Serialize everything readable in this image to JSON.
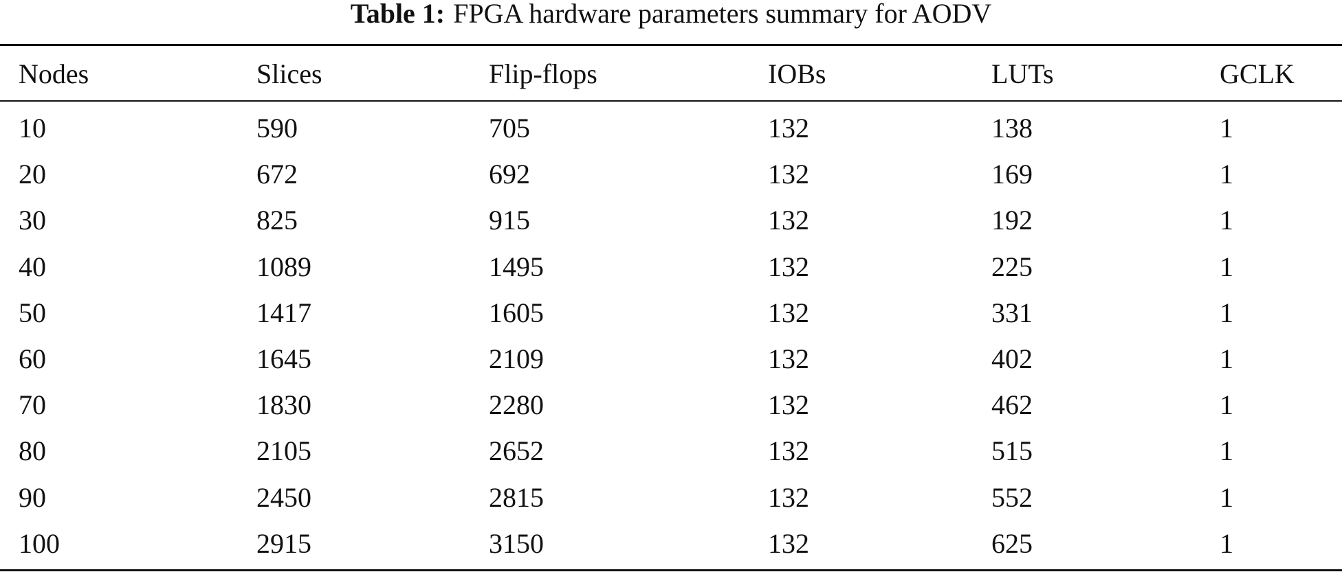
{
  "caption": {
    "label": "Table 1:",
    "text": "FPGA hardware parameters summary for AODV"
  },
  "table": {
    "header": [
      "Nodes",
      "Slices",
      "Flip-flops",
      "IOBs",
      "LUTs",
      "GCLK"
    ],
    "rows": [
      [
        10,
        590,
        705,
        132,
        138,
        1
      ],
      [
        20,
        672,
        692,
        132,
        169,
        1
      ],
      [
        30,
        825,
        915,
        132,
        192,
        1
      ],
      [
        40,
        1089,
        1495,
        132,
        225,
        1
      ],
      [
        50,
        1417,
        1605,
        132,
        331,
        1
      ],
      [
        60,
        1645,
        2109,
        132,
        402,
        1
      ],
      [
        70,
        1830,
        2280,
        132,
        462,
        1
      ],
      [
        80,
        2105,
        2652,
        132,
        515,
        1
      ],
      [
        90,
        2450,
        2815,
        132,
        552,
        1
      ],
      [
        100,
        2915,
        3150,
        132,
        625,
        1
      ]
    ]
  }
}
